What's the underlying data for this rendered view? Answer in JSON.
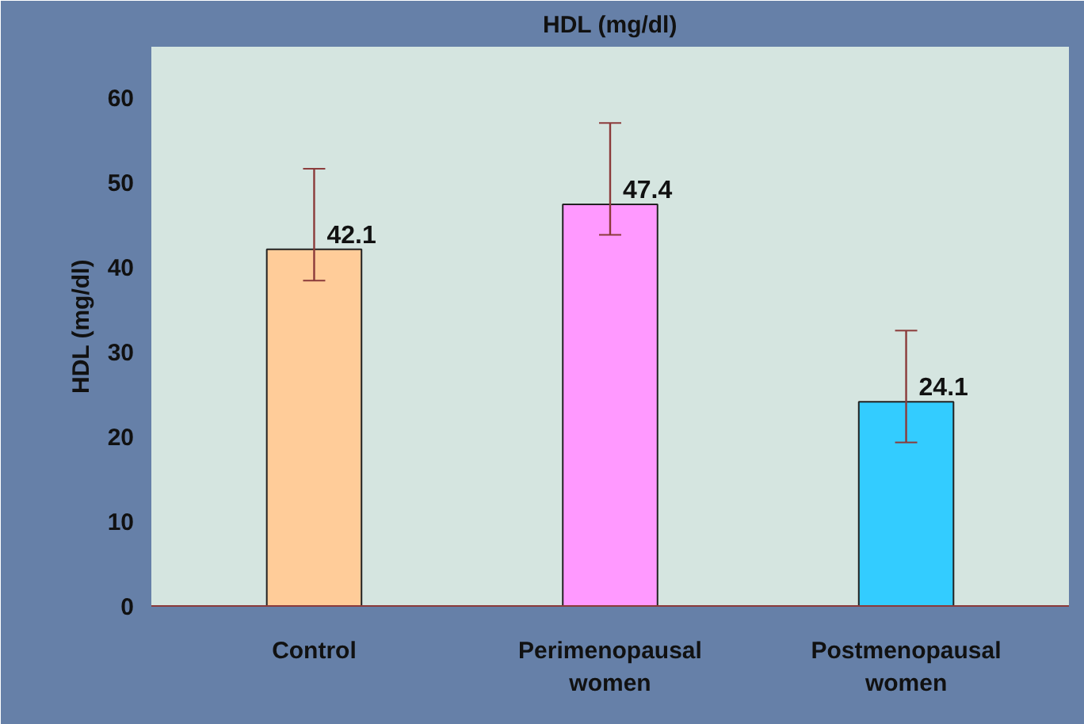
{
  "chart_data": {
    "type": "bar",
    "title": "HDL (mg/dl)",
    "ylabel": "HDL (mg/dl)",
    "categories": [
      "Control",
      "Perimenopausal women",
      "Postmenopausal women"
    ],
    "values": [
      42.1,
      47.4,
      24.1
    ],
    "data_labels": true,
    "colors": [
      "#ffcc99",
      "#ff99ff",
      "#33ccff"
    ],
    "errors": [
      [
        38.4,
        51.6
      ],
      [
        43.8,
        57
      ],
      [
        19.3,
        32.5
      ]
    ],
    "ylim": [
      0,
      66
    ],
    "yticks": [
      0,
      10,
      20,
      30,
      40,
      50,
      60
    ],
    "grid": false
  }
}
